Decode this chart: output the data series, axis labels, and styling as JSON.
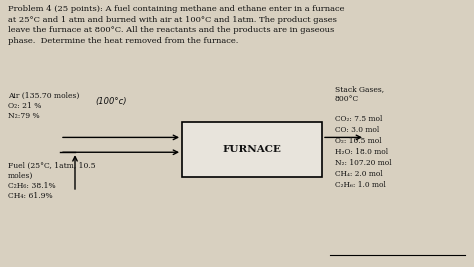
{
  "title_text": "Problem 4 (25 points): A fuel containing methane and ethane enter in a furnace\nat 25°C and 1 atm and burned with air at 100°C and 1atm. The product gases\nleave the furnace at 800°C. All the reactants and the products are in gaseous\nphase.  Determine the heat removed from the furnace.",
  "furnace_label": "FURNACE",
  "air_line1": "Air (135.70 moles)",
  "air_line2": "O₂: 21 %",
  "air_line3": "N₂:79 %",
  "air_temp_label": "(100°c)",
  "fuel_line1": "Fuel (25°C, 1atm, 10.5",
  "fuel_line2": "moles)",
  "fuel_line3": "C₂H₆: 38.1%",
  "fuel_line4": "CH₄: 61.9%",
  "stack_header1": "Stack Gases,",
  "stack_header2": "800°C",
  "stack_line1": "CO₂: 7.5 mol",
  "stack_line2": "CO: 3.0 mol",
  "stack_line3": "O₂: 10.5 mol",
  "stack_line4": "H₂O: 18.0 mol",
  "stack_line5": "N₂: 107.20 mol",
  "stack_line6": "CH₄: 2.0 mol",
  "stack_line7": "C₂H₆: 1.0 mol",
  "bg_color": "#d8d0c0",
  "box_color": "#e8e4dc",
  "text_color": "#111111"
}
